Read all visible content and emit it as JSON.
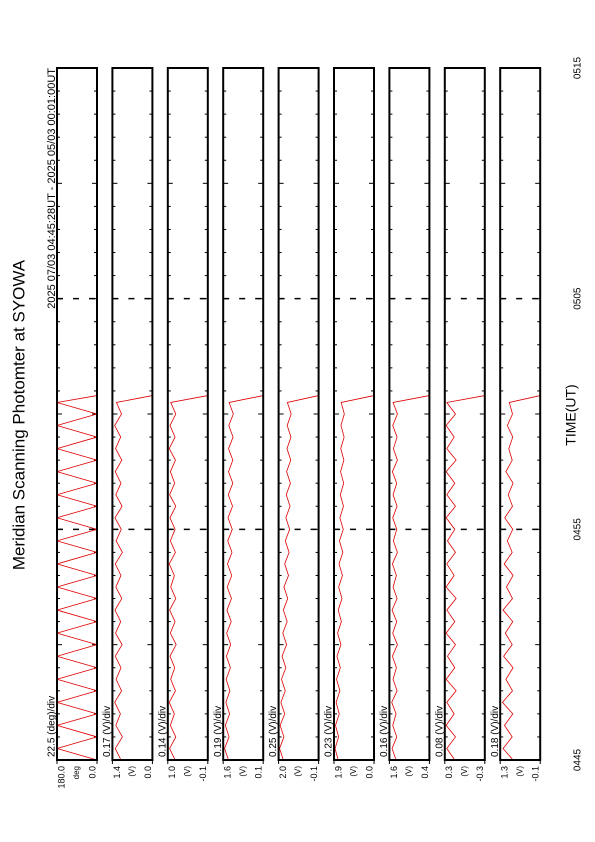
{
  "chart_data": {
    "type": "line",
    "title": "Meridian Scanning Photomter at SYOWA",
    "subtitle": "2025 07/03 04:45:28UT - 2025 05/03 00:01:00UT",
    "xlabel": "TIME(UT)",
    "xlim": [
      285,
      315
    ],
    "xticks": [
      {
        "value": 285,
        "label": "0445"
      },
      {
        "value": 295,
        "label": "0455"
      },
      {
        "value": 305,
        "label": "0505"
      },
      {
        "value": 315,
        "label": "0515"
      }
    ],
    "x": [
      285,
      285.5,
      286,
      286.5,
      287,
      287.5,
      288,
      288.5,
      289,
      289.5,
      290,
      290.5,
      291,
      291.5,
      292,
      292.5,
      293,
      293.5,
      294,
      294.5,
      295,
      295.5,
      296,
      296.5,
      297,
      297.5,
      298,
      298.5,
      299,
      299.5,
      300,
      300.5,
      300.8
    ],
    "series": [
      {
        "name": "22.5 (deg)/div",
        "unit": "deg",
        "color": "#e00000",
        "ylim": [
          0,
          180
        ],
        "yticks": [
          {
            "value": 180,
            "label": "180.0"
          },
          {
            "value": 0,
            "label": "0.0"
          }
        ],
        "values": [
          0,
          180,
          0,
          180,
          0,
          180,
          0,
          180,
          0,
          180,
          0,
          180,
          0,
          180,
          0,
          180,
          0,
          180,
          0,
          180,
          0,
          180,
          0,
          180,
          0,
          180,
          0,
          180,
          0,
          180,
          0,
          180,
          0
        ]
      },
      {
        "name": "0.17 (V)/div",
        "unit": "(V)",
        "color": "#e00000",
        "ylim": [
          0,
          1.4
        ],
        "yticks": [
          1.4,
          {
            "value": 0,
            "label": "0.0"
          }
        ],
        "values": [
          1.1,
          1.3,
          1.05,
          1.28,
          1.12,
          1.32,
          1.08,
          1.27,
          1.1,
          1.3,
          1.06,
          1.29,
          1.11,
          1.31,
          1.07,
          1.28,
          1.1,
          1.3,
          1.05,
          1.27,
          1.09,
          1.31,
          1.06,
          1.28,
          1.1,
          1.3,
          1.07,
          1.29,
          1.11,
          1.32,
          1.08,
          1.26,
          0
        ]
      },
      {
        "name": "0.14 (V)/div",
        "unit": "(V)",
        "color": "#e00000",
        "ylim": [
          -0.1,
          1.0
        ],
        "yticks": [
          {
            "value": 1.0,
            "label": "1.0"
          },
          -0.1
        ],
        "values": [
          0.8,
          0.95,
          0.78,
          0.93,
          0.82,
          0.96,
          0.79,
          0.92,
          0.81,
          0.94,
          0.77,
          0.93,
          0.8,
          0.95,
          0.78,
          0.92,
          0.82,
          0.96,
          0.79,
          0.93,
          0.8,
          0.94,
          0.78,
          0.95,
          0.81,
          0.93,
          0.79,
          0.96,
          0.8,
          0.94,
          0.78,
          0.92,
          -0.1
        ]
      },
      {
        "name": "0.19 (V)/div",
        "unit": "(V)",
        "color": "#e00000",
        "ylim": [
          0.1,
          1.6
        ],
        "yticks": [
          1.6,
          0.1
        ],
        "values": [
          1.4,
          1.55,
          1.38,
          1.52,
          1.36,
          1.5,
          1.35,
          1.49,
          1.33,
          1.48,
          1.32,
          1.47,
          1.3,
          1.46,
          1.29,
          1.45,
          1.28,
          1.44,
          1.27,
          1.43,
          1.26,
          1.42,
          1.25,
          1.41,
          1.24,
          1.4,
          1.24,
          1.4,
          1.23,
          1.39,
          1.22,
          1.38,
          0.1
        ]
      },
      {
        "name": "0.25 (V)/div",
        "unit": "(V)",
        "color": "#e00000",
        "ylim": [
          -0.1,
          2.0
        ],
        "yticks": [
          {
            "value": 2.0,
            "label": "2.0"
          },
          -0.1
        ],
        "values": [
          1.75,
          1.95,
          1.72,
          1.92,
          1.68,
          1.88,
          1.65,
          1.85,
          1.62,
          1.82,
          1.58,
          1.78,
          1.55,
          1.75,
          1.52,
          1.72,
          1.48,
          1.68,
          1.45,
          1.65,
          1.42,
          1.62,
          1.4,
          1.6,
          1.38,
          1.58,
          1.36,
          1.56,
          1.35,
          1.55,
          1.34,
          1.54,
          -0.1
        ]
      },
      {
        "name": "0.23 (V)/div",
        "unit": "(V)",
        "color": "#e00000",
        "ylim": [
          0,
          1.9
        ],
        "yticks": [
          1.9,
          {
            "value": 0,
            "label": "0.0"
          }
        ],
        "values": [
          1.7,
          1.85,
          1.68,
          1.83,
          1.65,
          1.8,
          1.62,
          1.78,
          1.6,
          1.76,
          1.57,
          1.73,
          1.55,
          1.7,
          1.52,
          1.68,
          1.5,
          1.66,
          1.48,
          1.64,
          1.46,
          1.62,
          1.45,
          1.6,
          1.44,
          1.59,
          1.43,
          1.58,
          1.42,
          1.57,
          1.41,
          1.56,
          0
        ]
      },
      {
        "name": "0.16 (V)/div",
        "unit": "(V)",
        "color": "#e00000",
        "ylim": [
          0.4,
          1.6
        ],
        "yticks": [
          1.6,
          0.4
        ],
        "values": [
          1.4,
          1.52,
          1.38,
          1.5,
          1.4,
          1.53,
          1.37,
          1.49,
          1.39,
          1.51,
          1.36,
          1.5,
          1.38,
          1.52,
          1.37,
          1.49,
          1.39,
          1.51,
          1.36,
          1.48,
          1.38,
          1.5,
          1.37,
          1.49,
          1.38,
          1.51,
          1.36,
          1.48,
          1.37,
          1.5,
          1.36,
          1.49,
          0.4
        ]
      },
      {
        "name": "0.08 (V)/div",
        "unit": "(V)",
        "color": "#e00000",
        "ylim": [
          -0.3,
          0.3
        ],
        "yticks": [
          0.3,
          -0.3
        ],
        "values": [
          0.15,
          0.27,
          0.14,
          0.28,
          0.16,
          0.27,
          0.13,
          0.28,
          0.15,
          0.26,
          0.14,
          0.28,
          0.15,
          0.27,
          0.13,
          0.28,
          0.16,
          0.27,
          0.14,
          0.26,
          0.15,
          0.28,
          0.14,
          0.27,
          0.15,
          0.28,
          0.13,
          0.27,
          0.16,
          0.28,
          0.14,
          0.27,
          -0.3
        ]
      },
      {
        "name": "0.18 (V)/div",
        "unit": "(V)",
        "color": "#e00000",
        "ylim": [
          -0.1,
          1.3
        ],
        "yticks": [
          1.3,
          -0.1
        ],
        "values": [
          0.85,
          1.2,
          0.88,
          1.15,
          0.86,
          1.22,
          0.87,
          1.1,
          0.85,
          1.18,
          0.88,
          1.12,
          0.86,
          1.2,
          0.87,
          1.08,
          0.85,
          1.16,
          0.88,
          1.05,
          0.86,
          1.14,
          0.87,
          1.02,
          0.85,
          1.1,
          0.88,
          1.0,
          0.86,
          1.05,
          0.87,
          0.98,
          -0.1
        ]
      }
    ]
  }
}
